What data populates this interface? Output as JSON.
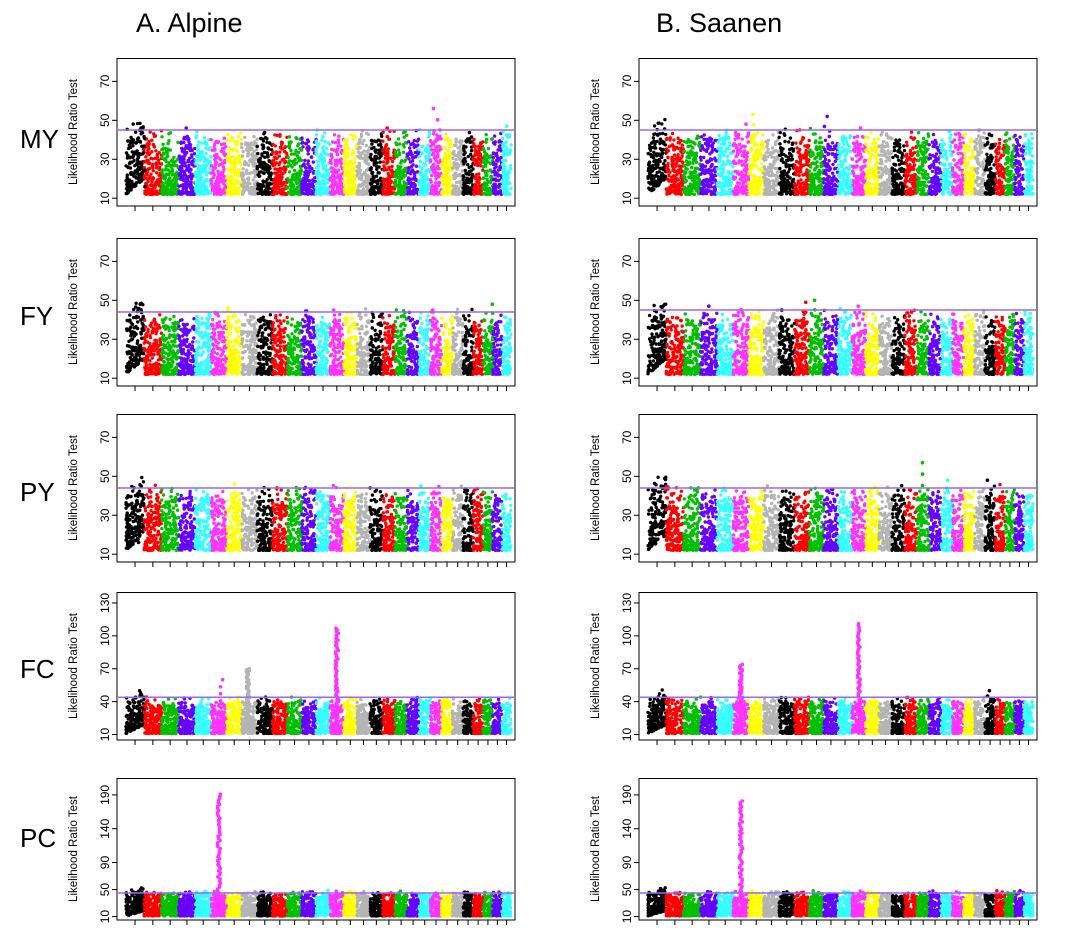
{
  "columns": [
    "A. Alpine",
    "B. Saanen"
  ],
  "rows": [
    "MY",
    "FY",
    "PY",
    "FC",
    "PC"
  ],
  "colors": [
    "#000000",
    "#ff0000",
    "#00c000",
    "#6600ff",
    "#33ffff",
    "#ff33ff",
    "#ffff00",
    "#b4b4b4"
  ],
  "chart_data": [
    {
      "type": "scatter",
      "trait": "MY",
      "breed": "A. Alpine",
      "ylabel": "Likelihood Ratio Test",
      "yticks": [
        10,
        30,
        50,
        70
      ],
      "ylim": [
        6,
        82
      ],
      "threshold": 45,
      "chromosomes": 29,
      "peaks": [
        {
          "chr": 1,
          "pos": 0.9,
          "value": 45
        },
        {
          "chr": 4,
          "pos": 0.6,
          "value": 46
        },
        {
          "chr": 18,
          "pos": 0.4,
          "value": 46
        },
        {
          "chr": 22,
          "pos": 0.5,
          "value": 56
        },
        {
          "chr": 29,
          "pos": 0.5,
          "value": 47
        }
      ]
    },
    {
      "type": "scatter",
      "trait": "MY",
      "breed": "B. Saanen",
      "ylabel": "Likelihood Ratio Test",
      "yticks": [
        10,
        30,
        50,
        70
      ],
      "ylim": [
        6,
        82
      ],
      "threshold": 45,
      "chromosomes": 29,
      "peaks": [
        {
          "chr": 6,
          "pos": 0.8,
          "value": 48
        },
        {
          "chr": 7,
          "pos": 0.4,
          "value": 53
        },
        {
          "chr": 12,
          "pos": 0.2,
          "value": 52
        },
        {
          "chr": 14,
          "pos": 0.5,
          "value": 46
        }
      ]
    },
    {
      "type": "scatter",
      "trait": "FY",
      "breed": "A. Alpine",
      "ylabel": "Likelihood Ratio Test",
      "yticks": [
        10,
        30,
        50,
        70
      ],
      "ylim": [
        6,
        82
      ],
      "threshold": 44,
      "chromosomes": 29,
      "peaks": [
        {
          "chr": 7,
          "pos": 0.3,
          "value": 46
        },
        {
          "chr": 22,
          "pos": 0.3,
          "value": 45
        },
        {
          "chr": 27,
          "pos": 0.8,
          "value": 48
        }
      ]
    },
    {
      "type": "scatter",
      "trait": "FY",
      "breed": "B. Saanen",
      "ylabel": "Likelihood Ratio Test",
      "yticks": [
        10,
        30,
        50,
        70
      ],
      "ylim": [
        6,
        82
      ],
      "threshold": 45,
      "chromosomes": 29,
      "peaks": [
        {
          "chr": 4,
          "pos": 0.5,
          "value": 47
        },
        {
          "chr": 9,
          "pos": 0.2,
          "value": 45
        },
        {
          "chr": 10,
          "pos": 0.6,
          "value": 49
        },
        {
          "chr": 11,
          "pos": 0.5,
          "value": 50
        },
        {
          "chr": 14,
          "pos": 0.5,
          "value": 47
        }
      ]
    },
    {
      "type": "scatter",
      "trait": "PY",
      "breed": "A. Alpine",
      "ylabel": "Likelihood Ratio Test",
      "yticks": [
        10,
        30,
        50,
        70
      ],
      "ylim": [
        6,
        82
      ],
      "threshold": 44,
      "chromosomes": 29,
      "peaks": [
        {
          "chr": 1,
          "pos": 0.7,
          "value": 45
        },
        {
          "chr": 7,
          "pos": 0.5,
          "value": 46
        },
        {
          "chr": 21,
          "pos": 0.4,
          "value": 45
        }
      ]
    },
    {
      "type": "scatter",
      "trait": "PY",
      "breed": "B. Saanen",
      "ylabel": "Likelihood Ratio Test",
      "yticks": [
        10,
        30,
        50,
        70
      ],
      "ylim": [
        6,
        82
      ],
      "threshold": 44,
      "chromosomes": 29,
      "peaks": [
        {
          "chr": 19,
          "pos": 0.5,
          "value": 57
        },
        {
          "chr": 21,
          "pos": 0.5,
          "value": 48
        },
        {
          "chr": 25,
          "pos": 0.4,
          "value": 48
        }
      ]
    },
    {
      "type": "scatter",
      "trait": "FC",
      "breed": "A. Alpine",
      "ylabel": "Likelihood Ratio Test",
      "yticks": [
        10,
        40,
        70,
        100,
        130
      ],
      "ylim": [
        5,
        140
      ],
      "threshold": 44,
      "chromosomes": 29,
      "peaks": [
        {
          "chr": 6,
          "pos": 0.6,
          "value": 60
        },
        {
          "chr": 8,
          "pos": 0.4,
          "value": 70
        },
        {
          "chr": 14,
          "pos": 0.5,
          "value": 107
        }
      ]
    },
    {
      "type": "scatter",
      "trait": "FC",
      "breed": "B. Saanen",
      "ylabel": "Likelihood Ratio Test",
      "yticks": [
        10,
        40,
        70,
        100,
        130
      ],
      "ylim": [
        5,
        140
      ],
      "threshold": 44,
      "chromosomes": 29,
      "peaks": [
        {
          "chr": 6,
          "pos": 0.5,
          "value": 74
        },
        {
          "chr": 14,
          "pos": 0.5,
          "value": 111
        },
        {
          "chr": 25,
          "pos": 0.5,
          "value": 50
        }
      ]
    },
    {
      "type": "scatter",
      "trait": "PC",
      "breed": "A. Alpine",
      "ylabel": "Likelihood Ratio Test",
      "yticks": [
        10,
        50,
        90,
        140,
        190
      ],
      "ylim": [
        5,
        215
      ],
      "threshold": 45,
      "chromosomes": 29,
      "peaks": [
        {
          "chr": 6,
          "pos": 0.5,
          "value": 191
        }
      ]
    },
    {
      "type": "scatter",
      "trait": "PC",
      "breed": "B. Saanen",
      "ylabel": "Likelihood Ratio Test",
      "yticks": [
        10,
        50,
        90,
        140,
        190
      ],
      "ylim": [
        5,
        215
      ],
      "threshold": 45,
      "chromosomes": 29,
      "peaks": [
        {
          "chr": 6,
          "pos": 0.5,
          "value": 181
        }
      ]
    }
  ]
}
